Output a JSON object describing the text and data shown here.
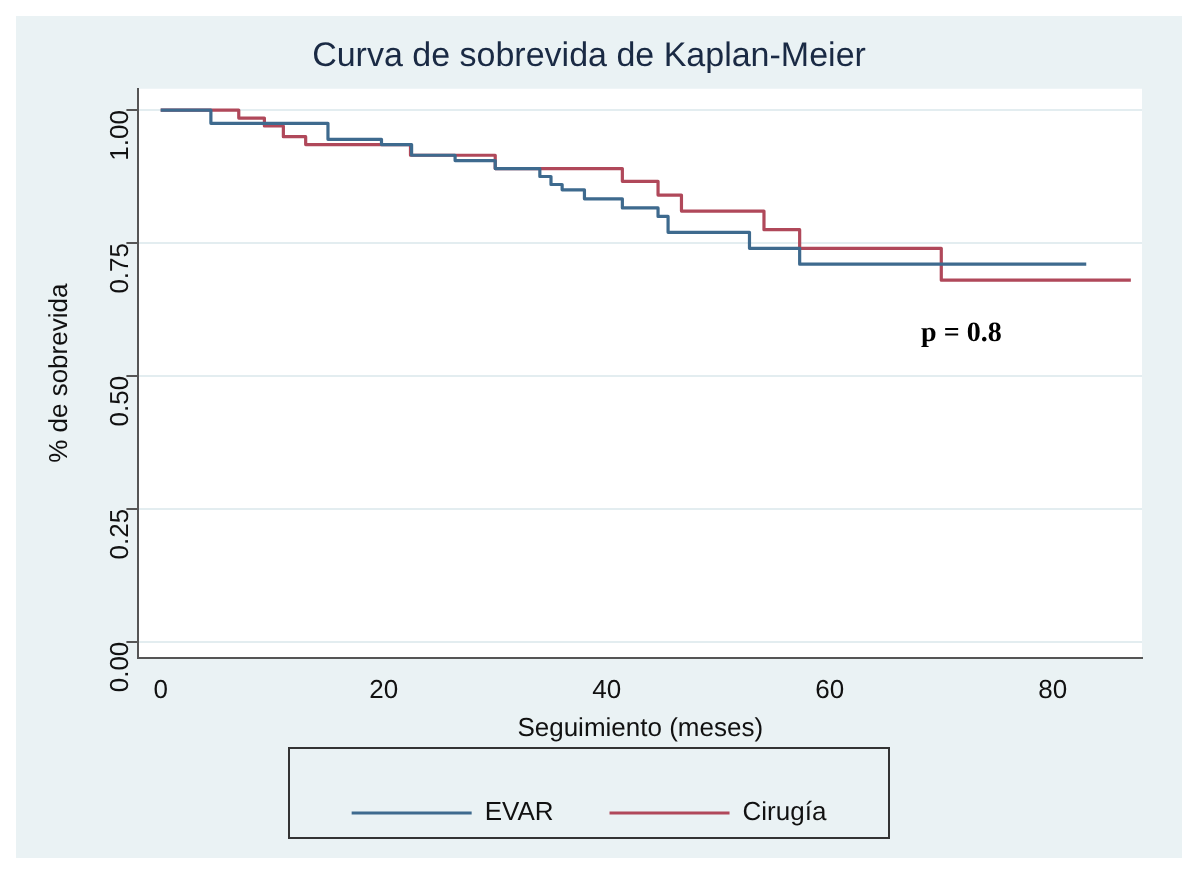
{
  "chart_data": {
    "type": "step",
    "title": "Curva de sobrevida de Kaplan-Meier",
    "xlabel": "Seguimiento (meses)",
    "ylabel": "% de sobrevida",
    "series": [
      {
        "name": "EVAR",
        "color": "#3e6a8e",
        "x": [
          0,
          4.5,
          15,
          19.8,
          22.5,
          26.4,
          30,
          34,
          35,
          36,
          38,
          41.4,
          44.6,
          45.5,
          52.8,
          57.3,
          83
        ],
        "values": [
          1,
          0.975,
          0.945,
          0.935,
          0.915,
          0.905,
          0.89,
          0.875,
          0.86,
          0.85,
          0.833,
          0.816,
          0.8,
          0.77,
          0.74,
          0.71,
          0.71
        ]
      },
      {
        "name": "Cirugía",
        "color": "#b0485a",
        "x": [
          0,
          7,
          9.3,
          11,
          13,
          22.4,
          30,
          41.4,
          44.6,
          46.7,
          54.1,
          57.3,
          70,
          87
        ],
        "values": [
          1,
          0.985,
          0.97,
          0.95,
          0.935,
          0.915,
          0.89,
          0.866,
          0.84,
          0.81,
          0.775,
          0.74,
          0.68,
          0.68
        ]
      }
    ],
    "xlim": [
      -2,
      88
    ],
    "xticks": [
      0,
      20,
      40,
      60,
      80
    ],
    "ylim": [
      -0.03,
      1.04
    ],
    "yticks": [
      {
        "value": 0,
        "label": "0.00"
      },
      {
        "value": 0.25,
        "label": "0.25"
      },
      {
        "value": 0.5,
        "label": "0.50"
      },
      {
        "value": 0.75,
        "label": "0.75"
      },
      {
        "value": 1,
        "label": "1.00"
      }
    ],
    "grid": "y",
    "legend": "bottom",
    "annotations": [
      "p = 0.8"
    ]
  }
}
